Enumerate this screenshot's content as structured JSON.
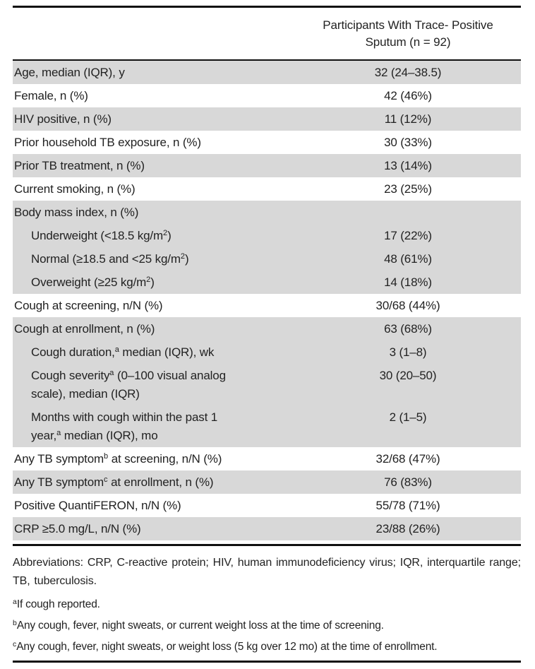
{
  "title_block": {
    "line1": "Participants With Trace- Positive",
    "line2": "Sputum (n = 92)"
  },
  "table": {
    "rows": [
      {
        "label_parts": [
          {
            "t": "Age, median (IQR), y"
          }
        ],
        "value": "32 (24–38.5)",
        "shade": true,
        "indent": false
      },
      {
        "label_parts": [
          {
            "t": "Female, n (%)"
          }
        ],
        "value": "42 (46%)",
        "shade": false,
        "indent": false
      },
      {
        "label_parts": [
          {
            "t": "HIV positive, n (%)"
          }
        ],
        "value": "11 (12%)",
        "shade": true,
        "indent": false
      },
      {
        "label_parts": [
          {
            "t": "Prior household TB exposure, n (%)"
          }
        ],
        "value": "30 (33%)",
        "shade": false,
        "indent": false
      },
      {
        "label_parts": [
          {
            "t": "Prior TB treatment, n (%)"
          }
        ],
        "value": "13 (14%)",
        "shade": true,
        "indent": false
      },
      {
        "label_parts": [
          {
            "t": "Current smoking, n (%)"
          }
        ],
        "value": "23 (25%)",
        "shade": false,
        "indent": false
      },
      {
        "label_parts": [
          {
            "t": "Body mass index, n (%)"
          }
        ],
        "value": "",
        "shade": true,
        "indent": false
      },
      {
        "label_parts": [
          {
            "t": "Underweight (<18.5 kg/m"
          },
          {
            "sup": "2"
          },
          {
            "t": ")"
          }
        ],
        "value": "17 (22%)",
        "shade": true,
        "indent": true
      },
      {
        "label_parts": [
          {
            "t": "Normal (≥18.5 and <25 kg/m"
          },
          {
            "sup": "2"
          },
          {
            "t": ")"
          }
        ],
        "value": "48 (61%)",
        "shade": true,
        "indent": true
      },
      {
        "label_parts": [
          {
            "t": "Overweight (≥25 kg/m"
          },
          {
            "sup": "2"
          },
          {
            "t": ")"
          }
        ],
        "value": "14 (18%)",
        "shade": true,
        "indent": true
      },
      {
        "label_parts": [
          {
            "t": "Cough at screening, n/N (%)"
          }
        ],
        "value": "30/68 (44%)",
        "shade": false,
        "indent": false
      },
      {
        "label_parts": [
          {
            "t": "Cough at enrollment, n (%)"
          }
        ],
        "value": "63 (68%)",
        "shade": true,
        "indent": false
      },
      {
        "label_parts": [
          {
            "t": "Cough duration,"
          },
          {
            "sup": "a"
          },
          {
            "t": " median (IQR), wk"
          }
        ],
        "value": "3 (1–8)",
        "shade": true,
        "indent": true
      },
      {
        "label_parts": [
          {
            "t": "Cough severity"
          },
          {
            "sup": "a"
          },
          {
            "t": " (0–100 visual analog"
          },
          {
            "br": true
          },
          {
            "t": "scale), median (IQR)"
          }
        ],
        "value": "30 (20–50)",
        "shade": true,
        "indent": true
      },
      {
        "label_parts": [
          {
            "t": "Months with cough within the past 1"
          },
          {
            "br": true
          },
          {
            "t": "year,"
          },
          {
            "sup": "a"
          },
          {
            "t": " median (IQR), mo"
          }
        ],
        "value": "2 (1–5)",
        "shade": true,
        "indent": true
      },
      {
        "label_parts": [
          {
            "t": "Any TB symptom"
          },
          {
            "sup": "b"
          },
          {
            "t": " at screening, n/N (%)"
          }
        ],
        "value": "32/68 (47%)",
        "shade": false,
        "indent": false
      },
      {
        "label_parts": [
          {
            "t": "Any TB symptom"
          },
          {
            "sup": "c"
          },
          {
            "t": " at enrollment, n (%)"
          }
        ],
        "value": "76 (83%)",
        "shade": true,
        "indent": false
      },
      {
        "label_parts": [
          {
            "t": "Positive QuantiFERON, n/N (%)"
          }
        ],
        "value": "55/78 (71%)",
        "shade": false,
        "indent": false
      },
      {
        "label_parts": [
          {
            "t": "CRP ≥5.0 mg/L, n/N (%)"
          }
        ],
        "value": "23/88 (26%)",
        "shade": true,
        "indent": false
      }
    ]
  },
  "footer": {
    "abbreviations": "Abbreviations: CRP, C-reactive protein; HIV, human immunodeficiency virus; IQR, interquartile range; TB, tuberculosis.",
    "footnotes": [
      {
        "sup": "a",
        "text": "If cough reported."
      },
      {
        "sup": "b",
        "text": "Any cough, fever, night sweats, or current weight loss at the time of screening."
      },
      {
        "sup": "c",
        "text": "Any cough, fever, night sweats, or weight loss (5 kg over 12 mo) at the time of enrollment."
      }
    ]
  },
  "colors": {
    "row_shade": "#d8d8d8",
    "rule": "#101010",
    "text": "#222222"
  }
}
